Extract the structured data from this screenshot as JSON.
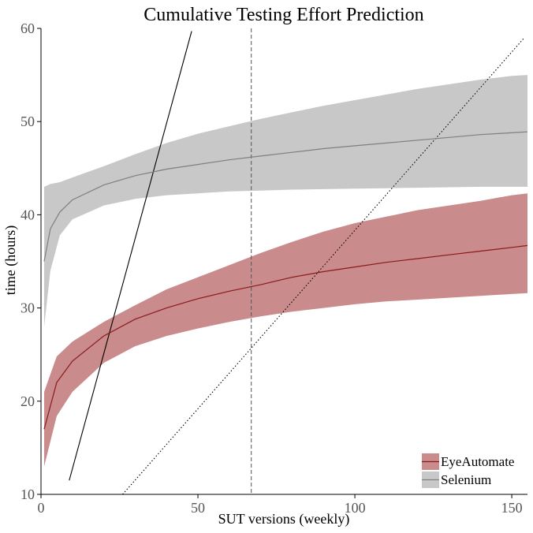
{
  "chart_data": {
    "type": "line",
    "title": "Cumulative Testing Effort Prediction",
    "xlabel": "SUT versions (weekly)",
    "ylabel": "time (hours)",
    "xlim": [
      0,
      155
    ],
    "ylim": [
      10,
      60
    ],
    "xticks": [
      0,
      50,
      100,
      150
    ],
    "yticks": [
      10,
      20,
      30,
      40,
      50,
      60
    ],
    "grid": false,
    "legend_position": "bottom-right",
    "series": [
      {
        "name": "EyeAutomate",
        "color": "#8b1a1a",
        "band_color": "#c98b8b",
        "x": [
          1,
          5,
          10,
          20,
          30,
          40,
          50,
          60,
          70,
          80,
          90,
          100,
          110,
          120,
          130,
          140,
          150,
          155
        ],
        "y": [
          17.0,
          22.0,
          24.3,
          27.0,
          28.8,
          30.0,
          31.0,
          31.8,
          32.5,
          33.3,
          33.9,
          34.4,
          34.9,
          35.3,
          35.7,
          36.1,
          36.5,
          36.7
        ],
        "lower": [
          13.0,
          18.4,
          21.0,
          24.1,
          25.9,
          27.0,
          27.8,
          28.5,
          29.1,
          29.6,
          30.0,
          30.4,
          30.7,
          30.9,
          31.1,
          31.3,
          31.5,
          31.6
        ],
        "upper": [
          21.0,
          24.8,
          26.4,
          28.5,
          30.3,
          32.0,
          33.3,
          34.6,
          35.9,
          37.1,
          38.2,
          39.1,
          39.8,
          40.5,
          41.0,
          41.5,
          42.1,
          42.3
        ]
      },
      {
        "name": "Selenium",
        "color": "#7f7f7f",
        "band_color": "#c8c8c8",
        "x": [
          1,
          3,
          6,
          10,
          20,
          30,
          40,
          50,
          60,
          70,
          80,
          90,
          100,
          110,
          120,
          130,
          140,
          150,
          155
        ],
        "y": [
          35.0,
          38.5,
          40.3,
          41.6,
          43.2,
          44.2,
          44.9,
          45.4,
          45.9,
          46.3,
          46.7,
          47.1,
          47.4,
          47.7,
          48.0,
          48.3,
          48.6,
          48.8,
          48.9
        ],
        "lower": [
          28.0,
          34.0,
          37.8,
          39.5,
          41.0,
          41.7,
          42.1,
          42.3,
          42.5,
          42.6,
          42.7,
          42.75,
          42.8,
          42.85,
          42.9,
          42.95,
          43.0,
          43.0,
          43.0
        ],
        "upper": [
          43.0,
          43.3,
          43.5,
          44.0,
          45.2,
          46.5,
          47.7,
          48.7,
          49.5,
          50.3,
          51.0,
          51.7,
          52.3,
          52.9,
          53.5,
          54.0,
          54.5,
          54.9,
          55.0
        ]
      }
    ],
    "reference_lines": [
      {
        "kind": "line",
        "style": "solid",
        "x": [
          9,
          48
        ],
        "y": [
          11.5,
          59.7
        ]
      },
      {
        "kind": "line",
        "style": "dotted",
        "x": [
          26,
          154
        ],
        "y": [
          10,
          59
        ]
      },
      {
        "kind": "vline",
        "style": "dashed",
        "x": 67
      }
    ]
  }
}
